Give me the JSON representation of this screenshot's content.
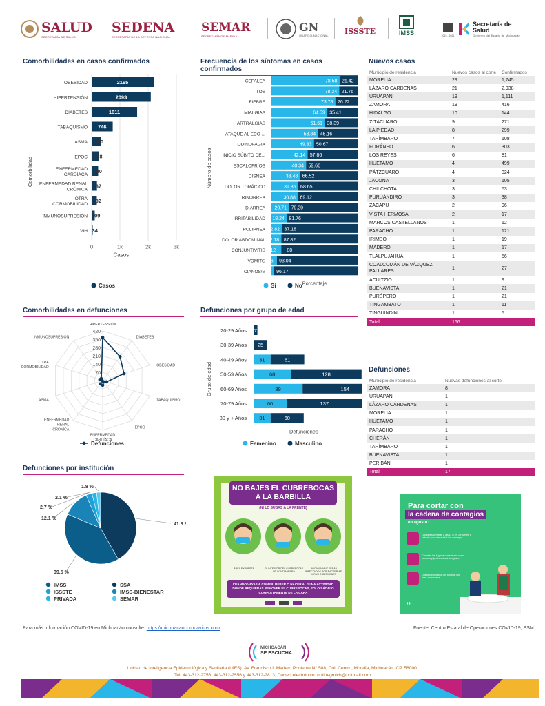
{
  "logos": {
    "salud": {
      "name": "SALUD",
      "sub": "SECRETARÍA DE SALUD"
    },
    "sedena": {
      "name": "SEDENA",
      "sub": "SECRETARÍA DE LA DEFENSA NACIONAL"
    },
    "semar": {
      "name": "SEMAR",
      "sub": "SECRETARÍA DE MARINA"
    },
    "gn": {
      "name": "GN",
      "sub": "GUARDIA NACIONAL"
    },
    "issste": {
      "name": "ISSSTE"
    },
    "imss": {
      "name": "IMSS"
    },
    "secretaria": {
      "name": "Secretaría de Salud",
      "sub": "Gobierno del Estado de Michoacán",
      "years": "2015 - 2021"
    }
  },
  "sections": {
    "comorbidades_casos": "Comorbilidades en casos confirmados",
    "sintomas": "Frecuencia de los síntomas en casos confirmados",
    "nuevos_casos": "Nuevos casos",
    "comorbilidades_defunciones": "Comorbilidades en defunciones",
    "defunciones_edad": "Defunciones por grupo de edad",
    "defunciones_lista": "Defunciones",
    "defunciones_institucion": "Defunciones por institución"
  },
  "chart_data": [
    {
      "type": "bar",
      "orientation": "horizontal",
      "title": "Comorbilidades en casos confirmados",
      "xlabel": "Casos",
      "ylabel": "Comorbilidad",
      "categories": [
        "OBESIDAD",
        "HIPERTENSIÓN",
        "DIABETES",
        "TABAQUISMO",
        "ASMA",
        "EPOC",
        "ENFERMEDAD CARDÍACA",
        "ENFERMEDAD RENAL CRÓNICA",
        "OTRA CORMOBILIDAD",
        "INMUNOSUPRESIÓN",
        "VIH"
      ],
      "values": [
        2195,
        2093,
        1611,
        746,
        330,
        258,
        230,
        187,
        182,
        109,
        34
      ],
      "xlim": [
        0,
        3000
      ],
      "xticks": [
        "0",
        "1k",
        "2k",
        "3k"
      ],
      "legend": [
        "Casos"
      ],
      "color": "#0d3b5e"
    },
    {
      "type": "bar",
      "orientation": "horizontal",
      "stacked": true,
      "title": "Frecuencia de los síntomas en casos confirmados",
      "xlabel": "Porcentaje",
      "ylabel": "Número de casos",
      "categories": [
        "CEFALEA",
        "TOS",
        "FIEBRE",
        "MIALGIAS",
        "ARTRALGIAS",
        "ATAQUE AL EDO ...",
        "ODINOFAGIA",
        "INICIO SÚBITO DE...",
        "ESCALOFRÍOS",
        "DISNEA",
        "DOLOR TORÁCICO",
        "RINORREA",
        "DIARREA",
        "IRRITABILIDAD",
        "POLIPNEA",
        "DOLOR ABDOMINAL",
        "CONJUNTIVITIS",
        "VOMITO",
        "CIANOSIS"
      ],
      "series": [
        {
          "name": "Sí",
          "color": "#29b6e8",
          "values": [
            78.58,
            78.24,
            73.78,
            64.59,
            61.61,
            53.84,
            49.33,
            42.14,
            40.34,
            33.48,
            31.35,
            30.88,
            20.71,
            18.24,
            12.82,
            12.18,
            12,
            6.96,
            3.83
          ]
        },
        {
          "name": "No",
          "color": "#0d3b5e",
          "values": [
            21.42,
            21.76,
            26.22,
            35.41,
            38.39,
            46.16,
            50.67,
            57.86,
            59.66,
            66.52,
            68.65,
            69.12,
            79.29,
            81.76,
            87.18,
            87.82,
            88,
            93.04,
            96.17
          ]
        }
      ],
      "xlim": [
        0,
        100
      ]
    },
    {
      "type": "radar",
      "title": "Comorbilidades en defunciones",
      "axes": [
        "HIPERTENSIÓN",
        "DIABETES",
        "OBESIDAD",
        "TABAQUISMO",
        "EPOC",
        "ENFERMEDAD CARDÍACA",
        "ENFERMEDAD RENAL CRÓNICA",
        "ASMA",
        "OTRA CORMOBILIDAD",
        "INMUNOSUPRESIÓN"
      ],
      "ticks": [
        "70",
        "140",
        "210",
        "280",
        "350",
        "420"
      ],
      "rmax": 420,
      "series": [
        {
          "name": "Defunciones",
          "values": [
            365,
            250,
            190,
            35,
            15,
            40,
            35,
            5,
            25,
            20
          ]
        }
      ],
      "color": "#0d3b5e"
    },
    {
      "type": "bar",
      "orientation": "horizontal",
      "stacked": true,
      "title": "Defunciones por grupo de edad",
      "ylabel": "Grupo de edad",
      "xlabel": "Defunciones",
      "categories": [
        "20-29 Años",
        "30-39 Años",
        "40-49 Años",
        "50-59 Años",
        "60-69 Años",
        "70-79 Años",
        "80 y + Años"
      ],
      "series": [
        {
          "name": "Femenino",
          "color": "#29b6e8",
          "values": [
            0,
            0,
            31,
            68,
            89,
            60,
            31
          ]
        },
        {
          "name": "Masculino",
          "color": "#0d3b5e",
          "values": [
            7,
            25,
            61,
            128,
            154,
            137,
            60
          ]
        }
      ]
    },
    {
      "type": "pie",
      "title": "Defunciones por institución",
      "slices": [
        {
          "label": "SSA",
          "value": 41.8,
          "text": "41.8 %",
          "color": "#0d3b5e"
        },
        {
          "label": "IMSS",
          "value": 39.5,
          "text": "39.5 %",
          "color": "#0b5d8a"
        },
        {
          "label": "IMSS-BIENESTAR",
          "value": 12.1,
          "text": "12.1 %",
          "color": "#1a84b8"
        },
        {
          "label": "ISSSTE",
          "value": 2.7,
          "text": "2.7 %",
          "color": "#1fa0d6"
        },
        {
          "label": "PRIVADA",
          "value": 2.1,
          "text": "2.1 %",
          "color": "#2ab4e4"
        },
        {
          "label": "SEMAR",
          "value": 1.8,
          "text": "1.8 %",
          "color": "#5cc7ee"
        }
      ],
      "legend_order": [
        "IMSS",
        "SSA",
        "ISSSTE",
        "IMSS-BIENESTAR",
        "PRIVADA",
        "SEMAR"
      ]
    }
  ],
  "nuevos_casos": {
    "headers": [
      "Municipio de residencia",
      "Nuevos casos al corte",
      "Confirmados"
    ],
    "rows": [
      [
        "MORELIA",
        "29",
        "1,745"
      ],
      [
        "LÁZARO CÁRDENAS",
        "21",
        "2,938"
      ],
      [
        "URUAPAN",
        "19",
        "1,111"
      ],
      [
        "ZAMORA",
        "19",
        "416"
      ],
      [
        "HIDALGO",
        "10",
        "144"
      ],
      [
        "ZITÁCUARO",
        "9",
        "271"
      ],
      [
        "LA PIEDAD",
        "8",
        "299"
      ],
      [
        "TARÍMBARO",
        "7",
        "108"
      ],
      [
        "FORÁNEO",
        "6",
        "303"
      ],
      [
        "LOS REYES",
        "6",
        "81"
      ],
      [
        "HUETAMO",
        "4",
        "499"
      ],
      [
        "PÁTZCUARO",
        "4",
        "324"
      ],
      [
        "JACONA",
        "3",
        "105"
      ],
      [
        "CHILCHOTA",
        "3",
        "53"
      ],
      [
        "PURUÁNDIRO",
        "3",
        "38"
      ],
      [
        "ZACAPU",
        "2",
        "96"
      ],
      [
        "VISTA HERMOSA",
        "2",
        "17"
      ],
      [
        "MARCOS CASTELLANOS",
        "1",
        "12"
      ],
      [
        "PARACHO",
        "1",
        "121"
      ],
      [
        "IRIMBO",
        "1",
        "19"
      ],
      [
        "MADERO",
        "1",
        "17"
      ],
      [
        "TLALPUJAHUA",
        "1",
        "56"
      ],
      [
        "COALCOMÁN DE VÁZQUEZ PALLARES",
        "1",
        "27"
      ],
      [
        "ACUITZIO",
        "1",
        "9"
      ],
      [
        "BUENAVISTA",
        "1",
        "21"
      ],
      [
        "PURÉPERO",
        "1",
        "21"
      ],
      [
        "TINGAMBATO",
        "1",
        "11"
      ],
      [
        "TINGÜINDÍN",
        "1",
        "5"
      ]
    ],
    "total": [
      "Total",
      "166",
      ""
    ]
  },
  "defunciones_tabla": {
    "headers": [
      "Municipio de residencia",
      "Nuevas defunciones al corte"
    ],
    "rows": [
      [
        "ZAMORA",
        "8"
      ],
      [
        "URUAPAN",
        "1"
      ],
      [
        "LÁZARO CÁRDENAS",
        "1"
      ],
      [
        "MORELIA",
        "1"
      ],
      [
        "HUETAMO",
        "1"
      ],
      [
        "PARACHO",
        "1"
      ],
      [
        "CHERÁN",
        "1"
      ],
      [
        "TARÍMBARO",
        "1"
      ],
      [
        "BUENAVISTA",
        "1"
      ],
      [
        "PERIBÁN",
        "1"
      ]
    ],
    "total": [
      "Total",
      "17"
    ]
  },
  "poster1": {
    "title1": "NO BAJES EL CUBREBOCAS",
    "title2": "A LA BARBILLA",
    "subtitle": "(NI LO SUBAS A LA FRENTE)",
    "captions": [
      "ÁREA EXPUESTA",
      "EL INTERIOR DEL CUBREBOCAS SE CONTAMINARÁ",
      "BOCA Y NARIZ SERÁN INFECTADOS POR BACTERIAS, VIRUS O GÉRMENES"
    ],
    "note": "CUANDO VAYAS A COMER, BEBER O HACER ALGUNA ACTIVIDAD DONDE REQUIERAS REMOVER EL CUBREBOCAS, SOLO SÁCALO COMPLETAMENTE DE LA CARA"
  },
  "poster2": {
    "title1": "Para cortar con",
    "title2": "la cadena de contagios",
    "subtitle": "en agosto:",
    "items": [
      "Los bares cerrarán a las 11 p. m. de jueves a sábado, con cierre total los domingos",
      "Cerrarán los lugares recreativos, como parques y jardines durante agosto",
      "Quedan prohibidos los tianguis los fines de semana"
    ]
  },
  "footer": {
    "info_prefix": "Para más información COVID-19 en Michoacán consulte:",
    "info_link": "https://michoacancoronavirus.com",
    "fuente": "Fuente: Centro Estatal de Operaciones COVID-19, SSM.",
    "brand1": "MICHOACÁN",
    "brand2": "SE ESCUCHA",
    "address": "Unidad de Inteligencia Epidemiológica y Sanitaria (UIES). Av. Francisco I. Madero Poniente N° 508, Col. Centro, Morelia, Michoacán. CP. 58000.",
    "phones": "Tel. 443-312-2756, 443-312-2556 y 443-312-2813, Correo electrónico: notinegmich@hotmail.com"
  },
  "colors": {
    "accent": "#c2207a",
    "navy": "#0d3b5e",
    "cyan": "#29b6e8",
    "title": "#1e3557"
  }
}
